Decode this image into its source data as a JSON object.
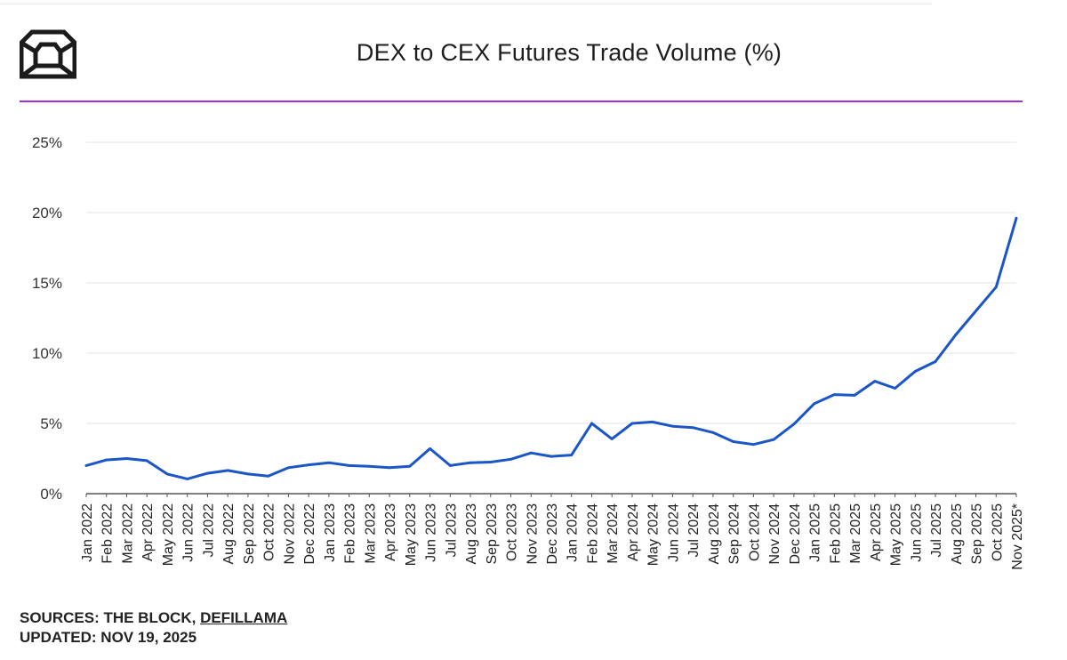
{
  "brand": {
    "logo_icon": "cube-icon",
    "accent_color": "#a02fd8",
    "line_color": "#1a56c8"
  },
  "chart_data": {
    "type": "line",
    "title": "DEX to CEX Futures Trade Volume (%)",
    "xlabel": "",
    "ylabel": "",
    "ylim": [
      0,
      25
    ],
    "yticks": [
      "0%",
      "5%",
      "10%",
      "15%",
      "20%",
      "25%"
    ],
    "ytick_values": [
      0,
      5,
      10,
      15,
      20,
      25
    ],
    "grid": true,
    "legend": "none",
    "categories": [
      "Jan 2022",
      "Feb 2022",
      "Mar 2022",
      "Apr 2022",
      "May 2022",
      "Jun 2022",
      "Jul 2022",
      "Aug 2022",
      "Sep 2022",
      "Oct 2022",
      "Nov 2022",
      "Dec 2022",
      "Jan 2023",
      "Feb 2023",
      "Mar 2023",
      "Apr 2023",
      "May 2023",
      "Jun 2023",
      "Jul 2023",
      "Aug 2023",
      "Sep 2023",
      "Oct 2023",
      "Nov 2023",
      "Dec 2023",
      "Jan 2024",
      "Feb 2024",
      "Mar 2024",
      "Apr 2024",
      "May 2024",
      "Jun 2024",
      "Jul 2024",
      "Aug 2024",
      "Sep 2024",
      "Oct 2024",
      "Nov 2024",
      "Dec 2024",
      "Jan 2025",
      "Feb 2025",
      "Mar 2025",
      "Apr 2025",
      "May 2025",
      "Jun 2025",
      "Jul 2025",
      "Aug 2025",
      "Sep 2025",
      "Oct 2025",
      "Nov 2025*"
    ],
    "series": [
      {
        "values": [
          2.0,
          2.4,
          2.5,
          2.35,
          1.4,
          1.05,
          1.45,
          1.65,
          1.4,
          1.25,
          1.85,
          2.05,
          2.2,
          2.0,
          1.95,
          1.85,
          1.95,
          3.2,
          2.0,
          2.2,
          2.25,
          2.45,
          2.9,
          2.65,
          2.75,
          5.0,
          3.9,
          5.0,
          5.1,
          4.8,
          4.7,
          4.35,
          3.7,
          3.5,
          3.85,
          4.95,
          6.4,
          7.05,
          7.0,
          8.0,
          7.5,
          8.7,
          9.4,
          11.3,
          13.0,
          14.7,
          19.6
        ]
      }
    ]
  },
  "footer": {
    "sources_prefix": "SOURCES: THE BLOCK, ",
    "sources_link": "DEFILLAMA",
    "updated": "UPDATED: NOV 19, 2025"
  }
}
